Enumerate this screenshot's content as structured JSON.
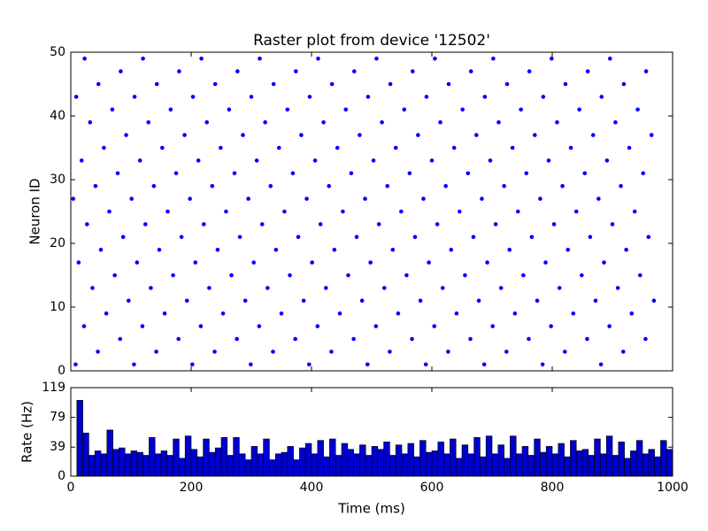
{
  "chart_data": {
    "type": "raster",
    "title": "Raster plot from device '12502'",
    "ylabel": "Neuron ID",
    "xlabel": "Time (ms)",
    "color": "#0000ff",
    "xlim": [
      0,
      1000
    ],
    "xticks": [
      0,
      200,
      400,
      600,
      800,
      1000
    ],
    "ylim": [
      0,
      50
    ],
    "yticks": [
      0,
      10,
      20,
      30,
      40,
      50
    ],
    "spikes": [
      {
        "id": 1,
        "times": [
          8,
          105,
          202,
          299,
          396,
          493,
          590,
          687,
          784,
          881
        ]
      },
      {
        "id": 3,
        "times": [
          45,
          142,
          239,
          336,
          433,
          530,
          627,
          724,
          821,
          918
        ]
      },
      {
        "id": 5,
        "times": [
          82,
          179,
          276,
          373,
          470,
          567,
          664,
          761,
          858,
          955
        ]
      },
      {
        "id": 7,
        "times": [
          22,
          119,
          216,
          313,
          410,
          507,
          604,
          701,
          798,
          895
        ]
      },
      {
        "id": 9,
        "times": [
          59,
          156,
          253,
          350,
          447,
          544,
          641,
          738,
          835,
          932
        ]
      },
      {
        "id": 11,
        "times": [
          96,
          193,
          290,
          387,
          484,
          581,
          678,
          775,
          872,
          969
        ]
      },
      {
        "id": 13,
        "times": [
          36,
          133,
          230,
          327,
          424,
          521,
          618,
          715,
          812,
          909
        ]
      },
      {
        "id": 15,
        "times": [
          73,
          170,
          267,
          364,
          461,
          558,
          655,
          752,
          849,
          946
        ]
      },
      {
        "id": 17,
        "times": [
          13,
          110,
          207,
          304,
          401,
          498,
          595,
          692,
          789,
          886
        ]
      },
      {
        "id": 19,
        "times": [
          50,
          147,
          244,
          341,
          438,
          535,
          632,
          729,
          826,
          923
        ]
      },
      {
        "id": 21,
        "times": [
          87,
          184,
          281,
          378,
          475,
          572,
          669,
          766,
          863,
          960
        ]
      },
      {
        "id": 23,
        "times": [
          27,
          124,
          221,
          318,
          415,
          512,
          609,
          706,
          803,
          900
        ]
      },
      {
        "id": 25,
        "times": [
          64,
          161,
          258,
          355,
          452,
          549,
          646,
          743,
          840,
          937
        ]
      },
      {
        "id": 27,
        "times": [
          4,
          101,
          198,
          295,
          392,
          489,
          586,
          683,
          780,
          877
        ]
      },
      {
        "id": 29,
        "times": [
          41,
          138,
          235,
          332,
          429,
          526,
          623,
          720,
          817,
          914
        ]
      },
      {
        "id": 31,
        "times": [
          78,
          175,
          272,
          369,
          466,
          563,
          660,
          757,
          854,
          951
        ]
      },
      {
        "id": 33,
        "times": [
          18,
          115,
          212,
          309,
          406,
          503,
          600,
          697,
          794,
          891
        ]
      },
      {
        "id": 35,
        "times": [
          55,
          152,
          249,
          346,
          443,
          540,
          637,
          734,
          831,
          928
        ]
      },
      {
        "id": 37,
        "times": [
          92,
          189,
          286,
          383,
          480,
          577,
          674,
          771,
          868,
          965
        ]
      },
      {
        "id": 39,
        "times": [
          32,
          129,
          226,
          323,
          420,
          517,
          614,
          711,
          808,
          905
        ]
      },
      {
        "id": 41,
        "times": [
          69,
          166,
          263,
          360,
          457,
          554,
          651,
          748,
          845,
          942
        ]
      },
      {
        "id": 43,
        "times": [
          9,
          106,
          203,
          300,
          397,
          494,
          591,
          688,
          785,
          882
        ]
      },
      {
        "id": 45,
        "times": [
          46,
          143,
          240,
          337,
          434,
          531,
          628,
          725,
          822,
          919
        ]
      },
      {
        "id": 47,
        "times": [
          83,
          180,
          277,
          374,
          471,
          568,
          665,
          762,
          859,
          956
        ]
      },
      {
        "id": 49,
        "times": [
          23,
          120,
          217,
          314,
          411,
          508,
          605,
          702,
          799,
          896
        ]
      }
    ],
    "rate": {
      "ylabel": "Rate (Hz)",
      "ylim": [
        0,
        119
      ],
      "yticks": [
        0,
        39,
        79,
        119
      ],
      "bins": [
        0,
        10,
        20,
        30,
        40,
        50,
        60,
        70,
        80,
        90,
        100,
        110,
        120,
        130,
        140,
        150,
        160,
        170,
        180,
        190,
        200,
        210,
        220,
        230,
        240,
        250,
        260,
        270,
        280,
        290,
        300,
        310,
        320,
        330,
        340,
        350,
        360,
        370,
        380,
        390,
        400,
        410,
        420,
        430,
        440,
        450,
        460,
        470,
        480,
        490,
        500,
        510,
        520,
        530,
        540,
        550,
        560,
        570,
        580,
        590,
        600,
        610,
        620,
        630,
        640,
        650,
        660,
        670,
        680,
        690,
        700,
        710,
        720,
        730,
        740,
        750,
        760,
        770,
        780,
        790,
        800,
        810,
        820,
        830,
        840,
        850,
        860,
        870,
        880,
        890,
        900,
        910,
        920,
        930,
        940,
        950,
        960,
        970,
        980,
        990,
        1000
      ],
      "values": [
        0,
        102,
        58,
        28,
        34,
        30,
        62,
        36,
        38,
        30,
        34,
        32,
        28,
        52,
        30,
        34,
        28,
        50,
        24,
        54,
        36,
        26,
        50,
        32,
        38,
        52,
        28,
        52,
        30,
        22,
        40,
        30,
        50,
        22,
        30,
        32,
        40,
        22,
        38,
        44,
        30,
        48,
        26,
        50,
        28,
        44,
        36,
        30,
        42,
        28,
        40,
        36,
        46,
        28,
        42,
        30,
        44,
        26,
        48,
        32,
        34,
        46,
        30,
        50,
        24,
        42,
        30,
        52,
        26,
        54,
        30,
        42,
        24,
        54,
        30,
        40,
        28,
        50,
        32,
        40,
        30,
        44,
        26,
        48,
        34,
        36,
        28,
        50,
        30,
        54,
        28,
        46,
        24,
        34,
        48,
        30,
        36,
        26,
        48,
        36
      ],
      "color": "#0000cc"
    }
  }
}
